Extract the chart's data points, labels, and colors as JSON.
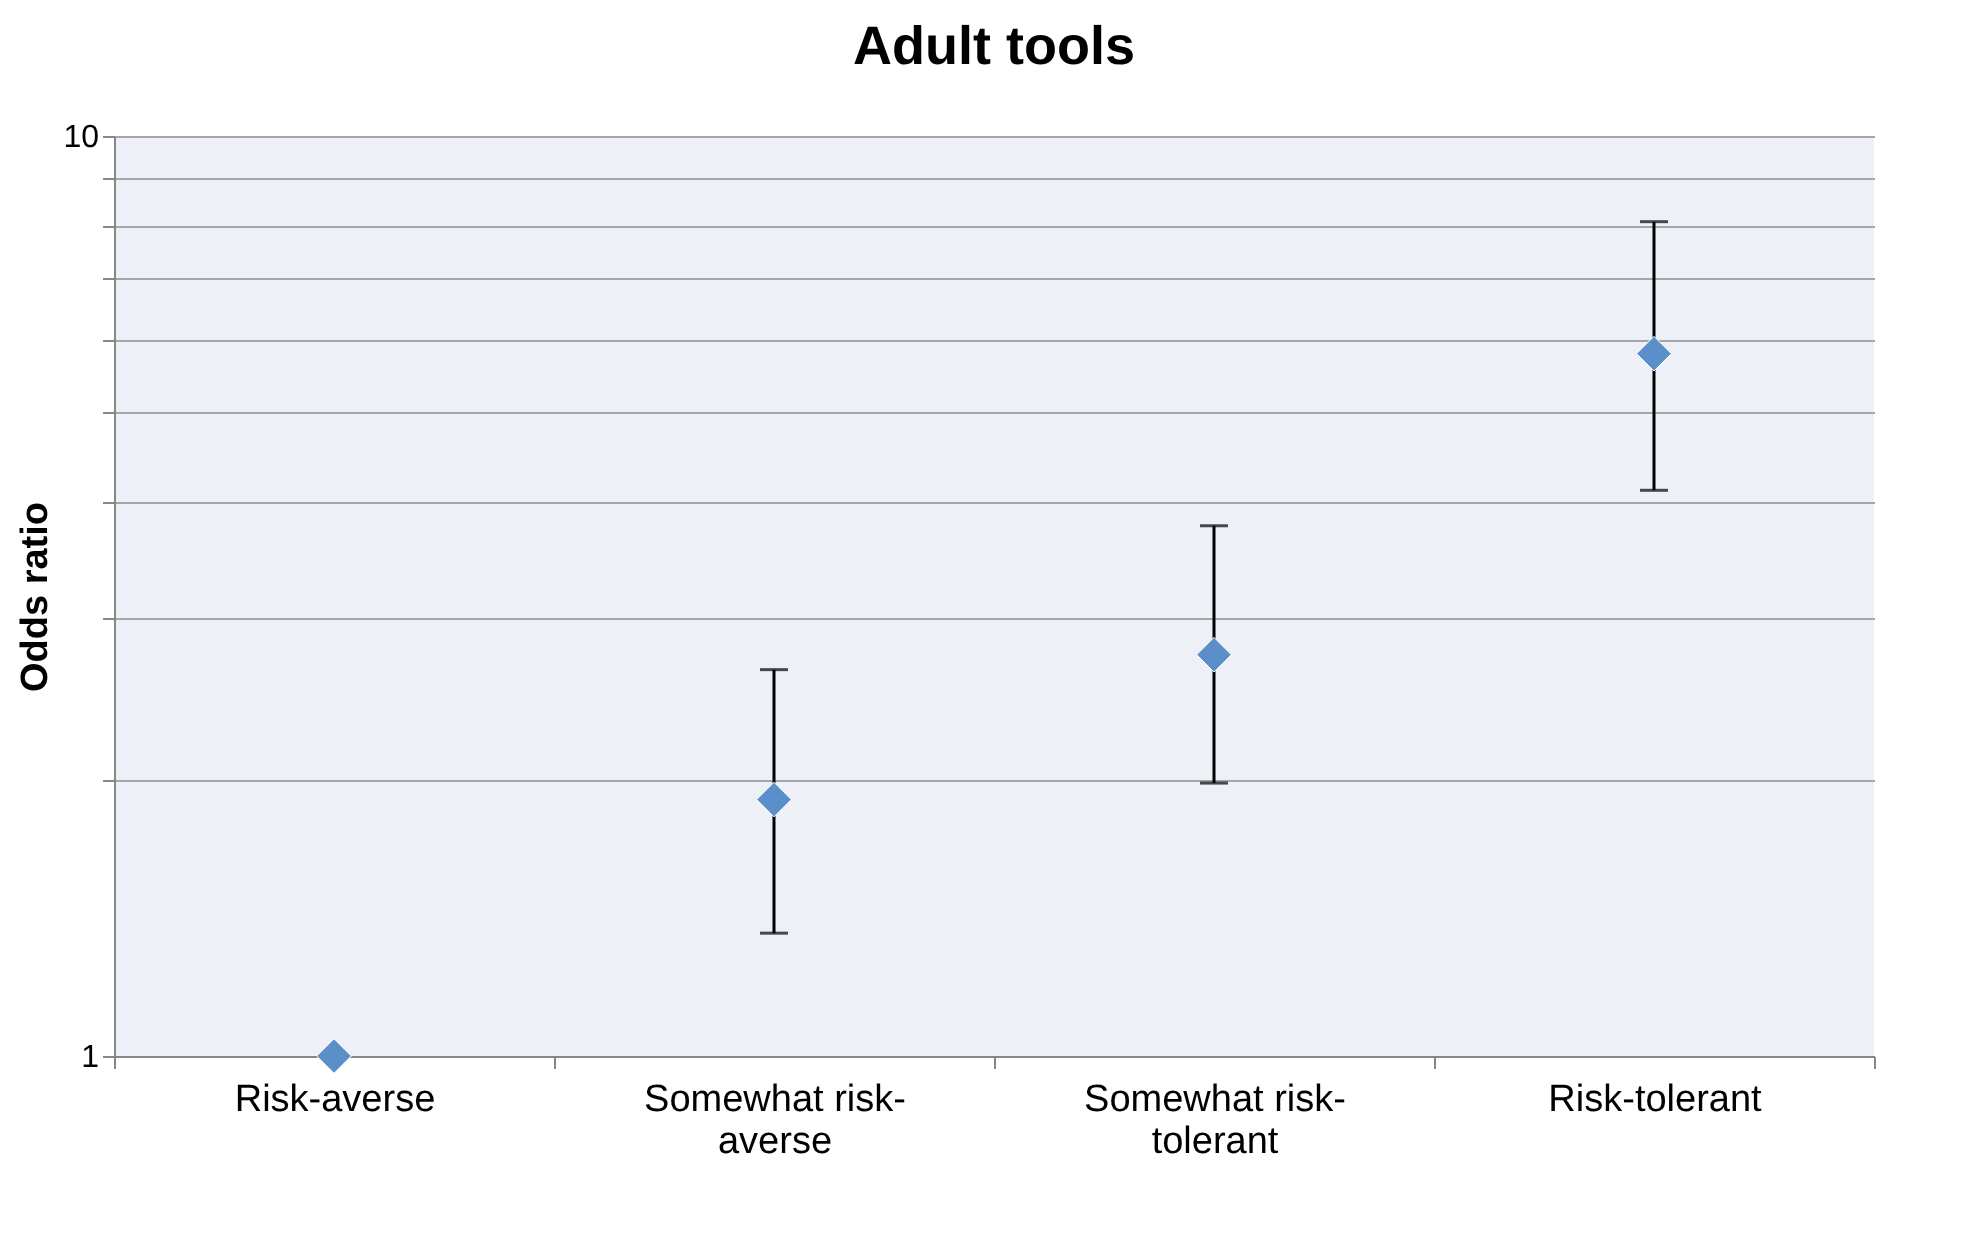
{
  "chart_data": {
    "type": "scatter",
    "title": "Adult tools",
    "ylabel": "Odds ratio",
    "categories": [
      "Risk-averse",
      "Somewhat risk-averse",
      "Somewhat risk-tolerant",
      "Risk-tolerant"
    ],
    "series": [
      {
        "color": "#5b8fc9",
        "values": [
          1,
          1.9,
          2.73,
          5.8
        ],
        "errors": [
          null,
          [
            1.36,
            2.63
          ],
          [
            1.98,
            3.77
          ],
          [
            4.12,
            8.07
          ]
        ]
      }
    ],
    "log": true,
    "ylim": [
      1,
      10
    ],
    "yticks": [
      1,
      {
        "value": 2,
        "label": null
      },
      {
        "value": 3,
        "label": null
      },
      {
        "value": 4,
        "label": null
      },
      {
        "value": 5,
        "label": null
      },
      {
        "value": 6,
        "label": null
      },
      {
        "value": 7,
        "label": null
      },
      {
        "value": 8,
        "label": null
      },
      {
        "value": 9,
        "label": null
      },
      10
    ],
    "grid": "y",
    "marker": "diamond",
    "legend": false
  }
}
